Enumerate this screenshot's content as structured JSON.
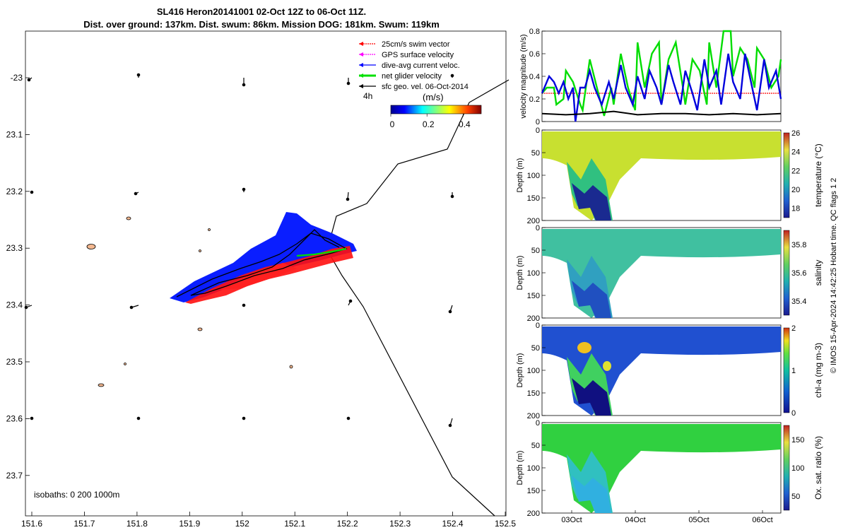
{
  "header": {
    "title_line1": "SL416 Heron20141001 02-Oct 12Z to 06-Oct 11Z.",
    "title_line2": "Dist. over ground: 137km. Dist. swum: 86km. Mission DOG: 181km. Swum: 119km"
  },
  "map": {
    "x_ticks": [
      "151.6",
      "151.7",
      "151.8",
      "151.9",
      "152",
      "152.1",
      "152.2",
      "152.3",
      "152.4",
      "152.5"
    ],
    "y_ticks": [
      "-23",
      "23.1",
      "23.2",
      "23.3",
      "23.4",
      "23.5",
      "23.6",
      "23.7"
    ],
    "isobaths_label": "isobaths: 0   200  1000m",
    "legend": [
      {
        "label": "25cm/s swim vector",
        "color": "#ff0000"
      },
      {
        "label": "GPS surface velocity",
        "color": "#ff00ff"
      },
      {
        "label": "dive-avg current veloc.",
        "color": "#0000ff"
      },
      {
        "label": "net glider velocity",
        "color": "#00e000"
      },
      {
        "label": "sfc geo. vel. 06-Oct-2014",
        "color": "#000000"
      }
    ],
    "time_label": "4h",
    "colorbar": {
      "unit": "(m/s)",
      "ticks": [
        "0",
        "0.2",
        "0.4"
      ],
      "min": 0,
      "max": 0.5
    }
  },
  "chart_data": [
    {
      "type": "line",
      "title": "velocity magnitude",
      "ylabel": "velocity magnitude (m/s)",
      "ylim": [
        0,
        0.8
      ],
      "y_ticks": [
        "0",
        "0.2",
        "0.4",
        "0.6",
        "0.8"
      ],
      "series": [
        {
          "name": "swim 25cm/s",
          "color": "#ff0000",
          "x": [
            0,
            1
          ],
          "values": [
            0.25,
            0.25
          ]
        },
        {
          "name": "net glider velocity",
          "color": "#00dd00",
          "x": [
            0,
            0.02,
            0.05,
            0.06,
            0.09,
            0.1,
            0.13,
            0.16,
            0.17,
            0.2,
            0.23,
            0.26,
            0.29,
            0.3,
            0.33,
            0.36,
            0.39,
            0.4,
            0.43,
            0.46,
            0.49,
            0.5,
            0.53,
            0.56,
            0.59,
            0.6,
            0.63,
            0.66,
            0.69,
            0.7,
            0.73,
            0.76,
            0.79,
            0.8,
            0.83,
            0.86,
            0.89,
            0.9,
            0.93,
            0.96,
            0.99,
            1
          ],
          "values": [
            0.25,
            0.3,
            0.3,
            0.15,
            0.2,
            0.45,
            0.35,
            0.15,
            0.1,
            0.55,
            0.3,
            0.05,
            0.3,
            0.15,
            0.6,
            0.3,
            0.1,
            0.7,
            0.3,
            0.6,
            0.7,
            0.15,
            0.55,
            0.7,
            0.3,
            0.15,
            0.55,
            0.45,
            0.15,
            0.7,
            0.3,
            0.8,
            0.8,
            0.4,
            0.65,
            0.55,
            0.3,
            0.65,
            0.55,
            0.3,
            0.4,
            0.55
          ]
        },
        {
          "name": "dive-avg current",
          "color": "#0000dd",
          "x": [
            0,
            0.03,
            0.05,
            0.07,
            0.09,
            0.11,
            0.13,
            0.14,
            0.16,
            0.18,
            0.2,
            0.22,
            0.25,
            0.28,
            0.3,
            0.33,
            0.35,
            0.38,
            0.4,
            0.43,
            0.45,
            0.48,
            0.5,
            0.53,
            0.55,
            0.58,
            0.6,
            0.63,
            0.65,
            0.68,
            0.7,
            0.73,
            0.75,
            0.78,
            0.8,
            0.83,
            0.85,
            0.88,
            0.9,
            0.93,
            0.95,
            0.98,
            1
          ],
          "values": [
            0.25,
            0.4,
            0.35,
            0.25,
            0.35,
            0.2,
            0.3,
            0.0,
            0.3,
            0.3,
            0.45,
            0.3,
            0.15,
            0.35,
            0.2,
            0.5,
            0.3,
            0.15,
            0.4,
            0.2,
            0.45,
            0.3,
            0.15,
            0.5,
            0.35,
            0.15,
            0.45,
            0.25,
            0.1,
            0.55,
            0.3,
            0.45,
            0.15,
            0.6,
            0.35,
            0.2,
            0.6,
            0.3,
            0.1,
            0.55,
            0.3,
            0.45,
            0.2
          ]
        },
        {
          "name": "surface geo vel",
          "color": "#000000",
          "x": [
            0,
            0.1,
            0.2,
            0.3,
            0.4,
            0.5,
            0.6,
            0.7,
            0.8,
            0.9,
            1
          ],
          "values": [
            0.07,
            0.06,
            0.07,
            0.09,
            0.06,
            0.07,
            0.07,
            0.06,
            0.07,
            0.06,
            0.07
          ]
        }
      ]
    },
    {
      "type": "heatmap",
      "ylabel": "Depth (m)",
      "cbar_label": "temperature (°C)",
      "cbar_ticks": [
        "26",
        "24",
        "22",
        "20",
        "18"
      ],
      "cbar_range": [
        17,
        26
      ],
      "y_ticks": [
        "0",
        "50",
        "100",
        "150",
        "200"
      ]
    },
    {
      "type": "heatmap",
      "ylabel": "Depth (m)",
      "cbar_label": "salinity",
      "cbar_ticks": [
        "35.8",
        "35.6",
        "35.4"
      ],
      "cbar_range": [
        35.3,
        35.9
      ],
      "y_ticks": [
        "0",
        "50",
        "100",
        "150",
        "200"
      ]
    },
    {
      "type": "heatmap",
      "ylabel": "Depth (m)",
      "cbar_label": "chl-a (mg m-3)",
      "cbar_ticks": [
        "2",
        "1",
        "0"
      ],
      "cbar_range": [
        0,
        2
      ],
      "y_ticks": [
        "0",
        "50",
        "100",
        "150",
        "200"
      ]
    },
    {
      "type": "heatmap",
      "ylabel": "Depth (m)",
      "cbar_label": "Ox. sat. ratio (%)",
      "cbar_ticks": [
        "150",
        "100",
        "50"
      ],
      "cbar_range": [
        25,
        175
      ],
      "y_ticks": [
        "0",
        "50",
        "100",
        "150",
        "200"
      ],
      "x_ticks": [
        "03Oct",
        "04Oct",
        "05Oct",
        "06Oct"
      ]
    }
  ],
  "footer": {
    "credit": "© IMOS 15-Apr-2024 14:42:25 Hobart time. QC flags 1  2"
  }
}
